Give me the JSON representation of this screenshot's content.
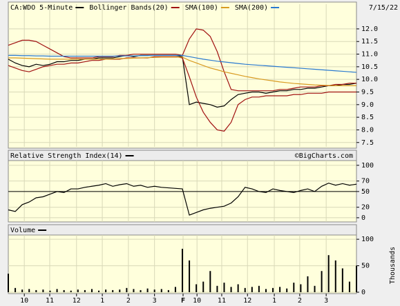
{
  "chart_data": [
    {
      "type": "line",
      "date": "7/15/22",
      "legend": "top",
      "grid": true,
      "x": [
        0,
        2,
        4,
        6,
        8,
        10,
        12,
        14,
        16,
        18,
        20,
        22,
        24,
        26,
        28,
        30,
        32,
        34,
        36,
        38,
        40,
        42,
        44,
        46,
        48,
        50,
        52,
        54,
        56,
        58,
        60,
        62,
        64,
        66,
        68,
        70,
        72,
        74,
        76,
        78,
        80,
        82,
        84,
        86,
        88,
        90,
        92,
        94,
        96,
        98,
        100
      ],
      "xlim": [
        0,
        100
      ],
      "ylim": [
        7.33,
        12.98
      ],
      "yticks": [
        {
          "value": 12,
          "label": "12.0"
        },
        11.5,
        {
          "value": 11,
          "label": "11.0"
        },
        10.5,
        {
          "value": 10,
          "label": "10.0"
        },
        9.5,
        {
          "value": 9,
          "label": "9.0"
        },
        8.5,
        {
          "value": 8,
          "label": "8.0"
        },
        7.5
      ],
      "series": [
        {
          "name": "CA:WDO 5-Minute",
          "color": "#000000",
          "values": [
            10.8,
            10.65,
            10.55,
            10.5,
            10.6,
            10.55,
            10.6,
            10.7,
            10.7,
            10.75,
            10.75,
            10.8,
            10.8,
            10.85,
            10.85,
            10.85,
            10.9,
            10.95,
            10.9,
            10.95,
            10.95,
            10.95,
            10.95,
            10.95,
            10.95,
            10.9,
            9.0,
            9.1,
            9.05,
            9.0,
            8.9,
            8.95,
            9.2,
            9.4,
            9.45,
            9.5,
            9.5,
            9.45,
            9.5,
            9.55,
            9.55,
            9.6,
            9.6,
            9.65,
            9.65,
            9.7,
            9.75,
            9.75,
            9.8,
            9.8,
            9.85
          ]
        },
        {
          "name": "Bollinger Bands(20)",
          "color": "#a01010",
          "values": [
            11.35,
            11.45,
            11.55,
            11.55,
            11.5,
            11.35,
            11.2,
            11.05,
            10.9,
            10.85,
            10.85,
            10.85,
            10.85,
            10.9,
            10.9,
            10.9,
            10.95,
            10.95,
            11.0,
            11.0,
            11.0,
            11.0,
            11.0,
            11.0,
            11.0,
            10.95,
            11.6,
            12.0,
            11.95,
            11.7,
            11.1,
            10.3,
            9.6,
            9.55,
            9.55,
            9.55,
            9.55,
            9.55,
            9.55,
            9.6,
            9.6,
            9.65,
            9.7,
            9.7,
            9.7,
            9.75,
            9.75,
            9.8,
            9.8,
            9.85,
            9.85
          ],
          "lower": [
            10.55,
            10.45,
            10.35,
            10.3,
            10.4,
            10.5,
            10.55,
            10.6,
            10.6,
            10.65,
            10.65,
            10.7,
            10.75,
            10.75,
            10.8,
            10.8,
            10.8,
            10.85,
            10.85,
            10.85,
            10.85,
            10.9,
            10.9,
            10.9,
            10.9,
            10.85,
            10.1,
            9.3,
            8.7,
            8.3,
            8.0,
            7.95,
            8.3,
            9.0,
            9.2,
            9.3,
            9.3,
            9.35,
            9.35,
            9.35,
            9.35,
            9.4,
            9.4,
            9.45,
            9.45,
            9.45,
            9.5,
            9.5,
            9.5,
            9.5,
            9.5
          ]
        },
        {
          "name": "SMA(100)",
          "color": "#d89a20",
          "values": [
            10.85,
            10.85,
            10.84,
            10.83,
            10.82,
            10.81,
            10.8,
            10.8,
            10.8,
            10.8,
            10.8,
            10.8,
            10.8,
            10.8,
            10.8,
            10.81,
            10.82,
            10.83,
            10.84,
            10.85,
            10.86,
            10.87,
            10.88,
            10.88,
            10.88,
            10.88,
            10.75,
            10.65,
            10.55,
            10.45,
            10.38,
            10.3,
            10.24,
            10.18,
            10.12,
            10.07,
            10.02,
            9.98,
            9.94,
            9.9,
            9.87,
            9.84,
            9.82,
            9.8,
            9.78,
            9.77,
            9.76,
            9.75,
            9.75,
            9.75,
            9.75
          ]
        },
        {
          "name": "SMA(200)",
          "color": "#2878d0",
          "values": [
            10.95,
            10.95,
            10.94,
            10.94,
            10.93,
            10.93,
            10.92,
            10.92,
            10.92,
            10.92,
            10.92,
            10.92,
            10.92,
            10.92,
            10.92,
            10.92,
            10.93,
            10.93,
            10.93,
            10.94,
            10.94,
            10.95,
            10.95,
            10.95,
            10.95,
            10.95,
            10.9,
            10.85,
            10.8,
            10.76,
            10.72,
            10.69,
            10.66,
            10.63,
            10.6,
            10.58,
            10.56,
            10.54,
            10.52,
            10.5,
            10.48,
            10.46,
            10.44,
            10.42,
            10.4,
            10.38,
            10.36,
            10.34,
            10.32,
            10.3,
            10.28
          ]
        }
      ]
    },
    {
      "type": "line",
      "credit": "©BigCharts.com",
      "legend": "top",
      "grid": true,
      "reference_line": 50,
      "x": [
        0,
        2,
        4,
        6,
        8,
        10,
        12,
        14,
        16,
        18,
        20,
        22,
        24,
        26,
        28,
        30,
        32,
        34,
        36,
        38,
        40,
        42,
        44,
        46,
        48,
        50,
        52,
        54,
        56,
        58,
        60,
        62,
        64,
        66,
        68,
        70,
        72,
        74,
        76,
        78,
        80,
        82,
        84,
        86,
        88,
        90,
        92,
        94,
        96,
        98,
        100
      ],
      "xlim": [
        0,
        100
      ],
      "ylim": [
        -8,
        109
      ],
      "yticks": [
        100,
        70,
        50,
        20,
        0
      ],
      "series": [
        {
          "name": "Relative Strength Index(14)",
          "color": "#000000",
          "values": [
            15,
            12,
            25,
            30,
            38,
            40,
            45,
            50,
            48,
            55,
            55,
            58,
            60,
            62,
            65,
            60,
            63,
            65,
            60,
            62,
            58,
            60,
            58,
            57,
            56,
            55,
            5,
            10,
            15,
            18,
            20,
            22,
            28,
            40,
            58,
            55,
            50,
            48,
            55,
            52,
            50,
            48,
            52,
            55,
            50,
            60,
            66,
            62,
            65,
            62,
            64
          ]
        }
      ]
    },
    {
      "type": "bar",
      "ylabel": "Thousands",
      "legend": "top",
      "grid": true,
      "x": [
        0,
        2,
        4,
        6,
        8,
        10,
        12,
        14,
        16,
        18,
        20,
        22,
        24,
        26,
        28,
        30,
        32,
        34,
        36,
        38,
        40,
        42,
        44,
        46,
        48,
        50,
        52,
        54,
        56,
        58,
        60,
        62,
        64,
        66,
        68,
        70,
        72,
        74,
        76,
        78,
        80,
        82,
        84,
        86,
        88,
        90,
        92,
        94,
        96,
        98,
        100
      ],
      "xlim": [
        0,
        100
      ],
      "ylim": [
        0,
        108
      ],
      "yticks": [
        100,
        50,
        0
      ],
      "xticks": [
        {
          "value": 4.6,
          "label": "10"
        },
        {
          "value": 11.9,
          "label": "11"
        },
        {
          "value": 19.6,
          "label": "12"
        },
        {
          "value": 27,
          "label": "1"
        },
        {
          "value": 34.5,
          "label": "2"
        },
        {
          "value": 42,
          "label": "3"
        },
        {
          "value": 50.2,
          "label": "F"
        },
        {
          "value": 54.2,
          "label": "10"
        },
        {
          "value": 61.3,
          "label": "11"
        },
        {
          "value": 68.7,
          "label": "12"
        },
        {
          "value": 76.4,
          "label": "1"
        },
        {
          "value": 83.7,
          "label": "2"
        },
        {
          "value": 91.3,
          "label": "3"
        }
      ],
      "series": [
        {
          "name": "Volume",
          "color": "#000000",
          "values": [
            35,
            8,
            5,
            6,
            4,
            5,
            3,
            6,
            4,
            3,
            5,
            4,
            6,
            3,
            5,
            4,
            5,
            8,
            6,
            4,
            7,
            5,
            6,
            4,
            10,
            82,
            60,
            15,
            20,
            40,
            12,
            18,
            10,
            15,
            8,
            10,
            12,
            6,
            8,
            10,
            7,
            18,
            15,
            30,
            12,
            40,
            70,
            60,
            45,
            20,
            50
          ]
        }
      ]
    }
  ]
}
